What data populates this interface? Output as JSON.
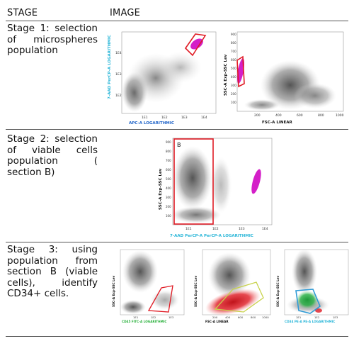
{
  "header": {
    "col_stage": "STAGE",
    "col_image": "IMAGE"
  },
  "rows": [
    {
      "text": "Stage 1: selection of microspheres population",
      "panels": [
        {
          "ylabel": "7-AAD PerCP-A LOGARITHMIC",
          "xlabel": "APC-A LOGARITHMIC",
          "xticks": [
            "1E1",
            "1E2",
            "1E3",
            "1E4"
          ],
          "yticks": [
            "1E2",
            "1E3",
            "1E4"
          ]
        },
        {
          "ylabel": "SSC-A Exp-SSC Lev",
          "xlabel": "FSC-A LINEAR",
          "xticks": [
            "200",
            "400",
            "600",
            "800",
            "1000"
          ],
          "yticks": [
            "100",
            "200",
            "300",
            "400",
            "500",
            "600",
            "700",
            "800",
            "900"
          ]
        }
      ]
    },
    {
      "text": "Stage 2: selection of viable cells population ( section B)",
      "panels": [
        {
          "gate_label": "B",
          "ylabel": "SSC-A Exp-SSC Lev",
          "xlabel": "7-AAD PerCP-A PerCP-A LOGARITHMIC",
          "xticks": [
            "1E1",
            "1E2",
            "1E3",
            "1E4"
          ],
          "yticks": [
            "100",
            "200",
            "300",
            "400",
            "500",
            "600",
            "700",
            "800",
            "900"
          ]
        }
      ]
    },
    {
      "text": "Stage 3: using population from section B (viable cells), identify CD34+ cells.",
      "panels": [
        {
          "ylabel": "SSC-A Exp-SSC Lev",
          "xlabel": "CD45 FITC-A LOGARITHMIC",
          "xticks": [
            "1E1",
            "1E2",
            "1E3"
          ]
        },
        {
          "ylabel": "SSC-A Exp-SSC Lev",
          "xlabel": "FSC-A LINEAR",
          "xticks": [
            "200",
            "400",
            "600",
            "800",
            "1000"
          ]
        },
        {
          "ylabel": "SSC-A Exp-SSC Lev",
          "xlabel": "CD34 PE-A PE-A LOGARITHMIC",
          "xticks": [
            "1E1",
            "1E2",
            "1E3"
          ]
        }
      ]
    }
  ],
  "colors": {
    "gate_red": "#e01b24",
    "gate_yellow": "#c8d24a",
    "gate_blue": "#2f9bd6",
    "microspheres": "#d41fc8",
    "cd34_green": "#2fb34a",
    "label_blue": "#1e63c8",
    "label_cyan": "#29b6d8",
    "label_green": "#27b03a"
  }
}
